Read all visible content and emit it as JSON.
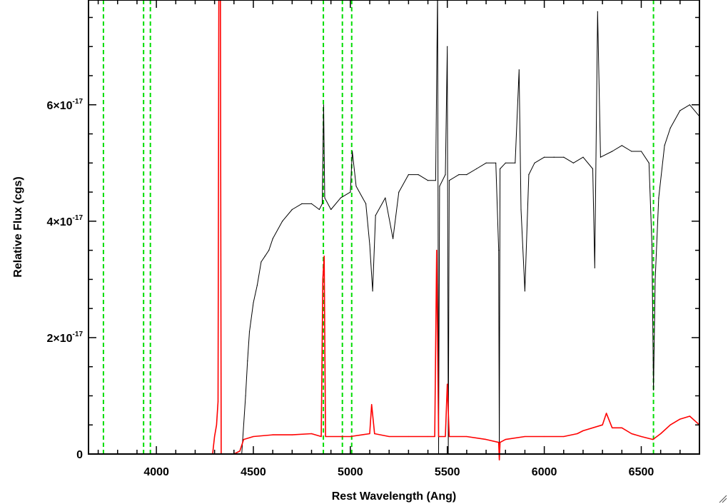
{
  "chart_data": {
    "type": "line",
    "title": "",
    "xlabel": "Rest Wavelength (Ang)",
    "ylabel": "Relative Flux (cgs)",
    "xlim": [
      3650,
      6800
    ],
    "ylim": [
      0,
      7.8e-17
    ],
    "x_ticks": [
      {
        "value": 4000,
        "label": "4000"
      },
      {
        "value": 4500,
        "label": "4500"
      },
      {
        "value": 5000,
        "label": "5000"
      },
      {
        "value": 5500,
        "label": "5500"
      },
      {
        "value": 6000,
        "label": "6000"
      },
      {
        "value": 6500,
        "label": "6500"
      }
    ],
    "y_ticks": [
      {
        "value": 0,
        "mantissa": "0",
        "exponent": ""
      },
      {
        "value": 2e-17,
        "mantissa": "2×10",
        "exponent": "-17"
      },
      {
        "value": 4e-17,
        "mantissa": "4×10",
        "exponent": "-17"
      },
      {
        "value": 6e-17,
        "mantissa": "6×10",
        "exponent": "-17"
      }
    ],
    "reference_lines_x": [
      3727,
      3934,
      3969,
      4861,
      4959,
      5007,
      6563
    ],
    "colors": {
      "spectrum": "#000000",
      "error": "#ff0000",
      "reference": "#00dd00"
    },
    "series": [
      {
        "color": "#000000",
        "points": [
          [
            3650,
            0
          ],
          [
            4300,
            0
          ],
          [
            4440,
            0
          ],
          [
            4460,
            1e-17
          ],
          [
            4470,
            1.6e-17
          ],
          [
            4480,
            2.1e-17
          ],
          [
            4500,
            2.6e-17
          ],
          [
            4520,
            2.9e-17
          ],
          [
            4540,
            3.3e-17
          ],
          [
            4560,
            3.4e-17
          ],
          [
            4580,
            3.5e-17
          ],
          [
            4600,
            3.7e-17
          ],
          [
            4650,
            4e-17
          ],
          [
            4700,
            4.2e-17
          ],
          [
            4750,
            4.3e-17
          ],
          [
            4800,
            4.3e-17
          ],
          [
            4840,
            4.2e-17
          ],
          [
            4855,
            4.3e-17
          ],
          [
            4862,
            6e-17
          ],
          [
            4868,
            4.4e-17
          ],
          [
            4900,
            4.2e-17
          ],
          [
            4950,
            4.4e-17
          ],
          [
            5000,
            4.5e-17
          ],
          [
            5010,
            5.2e-17
          ],
          [
            5030,
            4.6e-17
          ],
          [
            5080,
            4.3e-17
          ],
          [
            5100,
            3.6e-17
          ],
          [
            5115,
            2.8e-17
          ],
          [
            5130,
            4.1e-17
          ],
          [
            5180,
            4.4e-17
          ],
          [
            5220,
            3.7e-17
          ],
          [
            5250,
            4.5e-17
          ],
          [
            5300,
            4.8e-17
          ],
          [
            5350,
            4.8e-17
          ],
          [
            5400,
            4.7e-17
          ],
          [
            5440,
            4.7e-17
          ],
          [
            5450,
            8e-17
          ],
          [
            5455,
            0
          ],
          [
            5460,
            4.6e-17
          ],
          [
            5490,
            4.8e-17
          ],
          [
            5500,
            7e-17
          ],
          [
            5505,
            0
          ],
          [
            5510,
            4.7e-17
          ],
          [
            5560,
            4.8e-17
          ],
          [
            5600,
            4.8e-17
          ],
          [
            5650,
            4.9e-17
          ],
          [
            5700,
            5e-17
          ],
          [
            5750,
            5e-17
          ],
          [
            5765,
            3.5e-17
          ],
          [
            5768,
            0
          ],
          [
            5772,
            4.9e-17
          ],
          [
            5800,
            5e-17
          ],
          [
            5850,
            5e-17
          ],
          [
            5870,
            6.6e-17
          ],
          [
            5880,
            4.2e-17
          ],
          [
            5900,
            2.8e-17
          ],
          [
            5920,
            4.8e-17
          ],
          [
            5950,
            5e-17
          ],
          [
            6000,
            5.1e-17
          ],
          [
            6050,
            5.1e-17
          ],
          [
            6100,
            5.1e-17
          ],
          [
            6150,
            5e-17
          ],
          [
            6200,
            5.1e-17
          ],
          [
            6250,
            4.9e-17
          ],
          [
            6260,
            3.2e-17
          ],
          [
            6275,
            7.6e-17
          ],
          [
            6290,
            5.1e-17
          ],
          [
            6350,
            5.2e-17
          ],
          [
            6400,
            5.3e-17
          ],
          [
            6450,
            5.2e-17
          ],
          [
            6500,
            5.2e-17
          ],
          [
            6540,
            5e-17
          ],
          [
            6555,
            3.6e-17
          ],
          [
            6563,
            1.1e-17
          ],
          [
            6572,
            3e-17
          ],
          [
            6590,
            4.4e-17
          ],
          [
            6620,
            5.3e-17
          ],
          [
            6650,
            5.6e-17
          ],
          [
            6700,
            5.9e-17
          ],
          [
            6750,
            6e-17
          ],
          [
            6800,
            5.8e-17
          ]
        ]
      },
      {
        "color": "#ff0000",
        "points": [
          [
            3650,
            0
          ],
          [
            4290,
            0
          ],
          [
            4300,
            3e-18
          ],
          [
            4310,
            5e-18
          ],
          [
            4318,
            9e-18
          ],
          [
            4322,
            7.8e-17
          ],
          [
            4330,
            7.8e-17
          ],
          [
            4334,
            0
          ],
          [
            4400,
            0
          ],
          [
            4430,
            5e-19
          ],
          [
            4450,
            2.5e-18
          ],
          [
            4500,
            3e-18
          ],
          [
            4600,
            3.3e-18
          ],
          [
            4700,
            3.3e-18
          ],
          [
            4800,
            3.5e-18
          ],
          [
            4850,
            3e-18
          ],
          [
            4858,
            3e-17
          ],
          [
            4865,
            3.4e-17
          ],
          [
            4872,
            3e-18
          ],
          [
            4950,
            3e-18
          ],
          [
            5000,
            3e-18
          ],
          [
            5100,
            3.5e-18
          ],
          [
            5110,
            8.5e-18
          ],
          [
            5125,
            3.5e-18
          ],
          [
            5200,
            3e-18
          ],
          [
            5300,
            3e-18
          ],
          [
            5400,
            3e-18
          ],
          [
            5435,
            3e-18
          ],
          [
            5445,
            3.5e-17
          ],
          [
            5455,
            3e-18
          ],
          [
            5490,
            3e-18
          ],
          [
            5500,
            1.2e-17
          ],
          [
            5510,
            3e-18
          ],
          [
            5600,
            3e-18
          ],
          [
            5700,
            2.5e-18
          ],
          [
            5765,
            2e-18
          ],
          [
            5768,
            -1e-18
          ],
          [
            5772,
            2e-18
          ],
          [
            5800,
            2.5e-18
          ],
          [
            5900,
            3e-18
          ],
          [
            6000,
            3e-18
          ],
          [
            6100,
            3e-18
          ],
          [
            6170,
            3.5e-18
          ],
          [
            6200,
            4e-18
          ],
          [
            6300,
            5e-18
          ],
          [
            6320,
            7e-18
          ],
          [
            6350,
            4.5e-18
          ],
          [
            6400,
            4.5e-18
          ],
          [
            6450,
            3.5e-18
          ],
          [
            6500,
            3e-18
          ],
          [
            6560,
            2.5e-18
          ],
          [
            6600,
            3.5e-18
          ],
          [
            6650,
            5e-18
          ],
          [
            6700,
            6e-18
          ],
          [
            6750,
            6.5e-18
          ],
          [
            6800,
            5e-18
          ]
        ]
      }
    ]
  }
}
